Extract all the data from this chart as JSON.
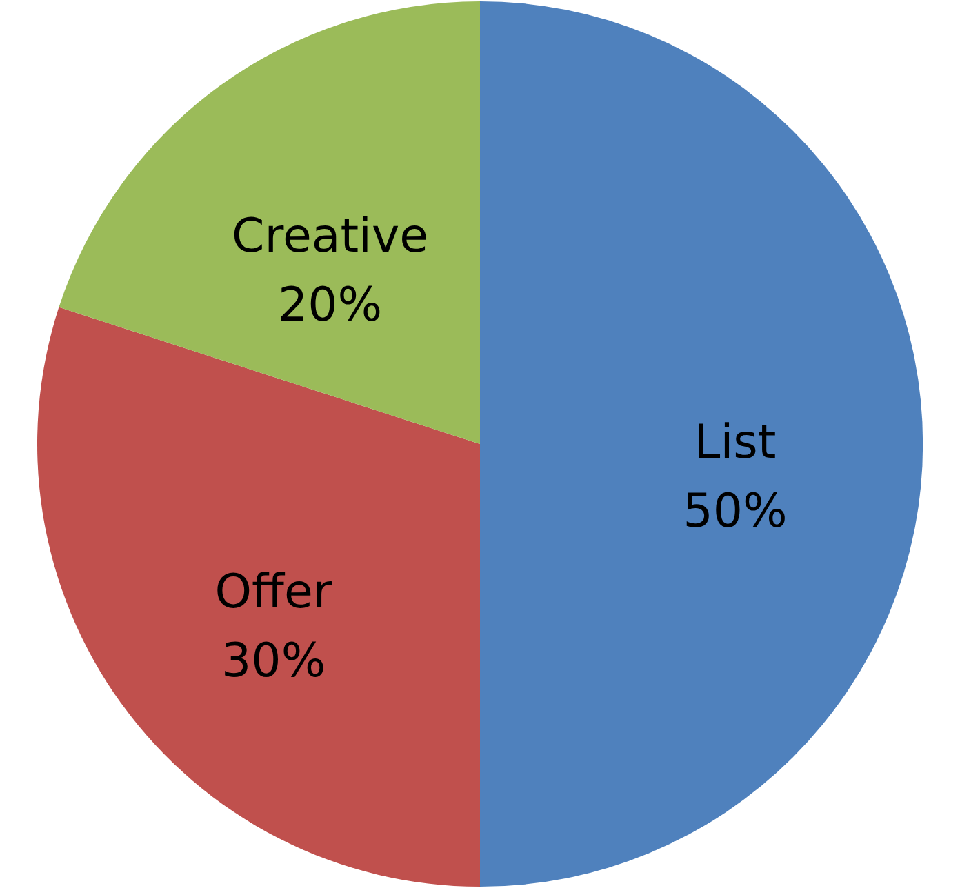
{
  "chart_data": {
    "type": "pie",
    "categories": [
      "List",
      "Offer",
      "Creative"
    ],
    "values": [
      50,
      30,
      20
    ],
    "colors": [
      "#4f81bd",
      "#c0504d",
      "#9bbb59"
    ],
    "value_labels": [
      "50%",
      "30%",
      "20%"
    ],
    "legend": false
  }
}
